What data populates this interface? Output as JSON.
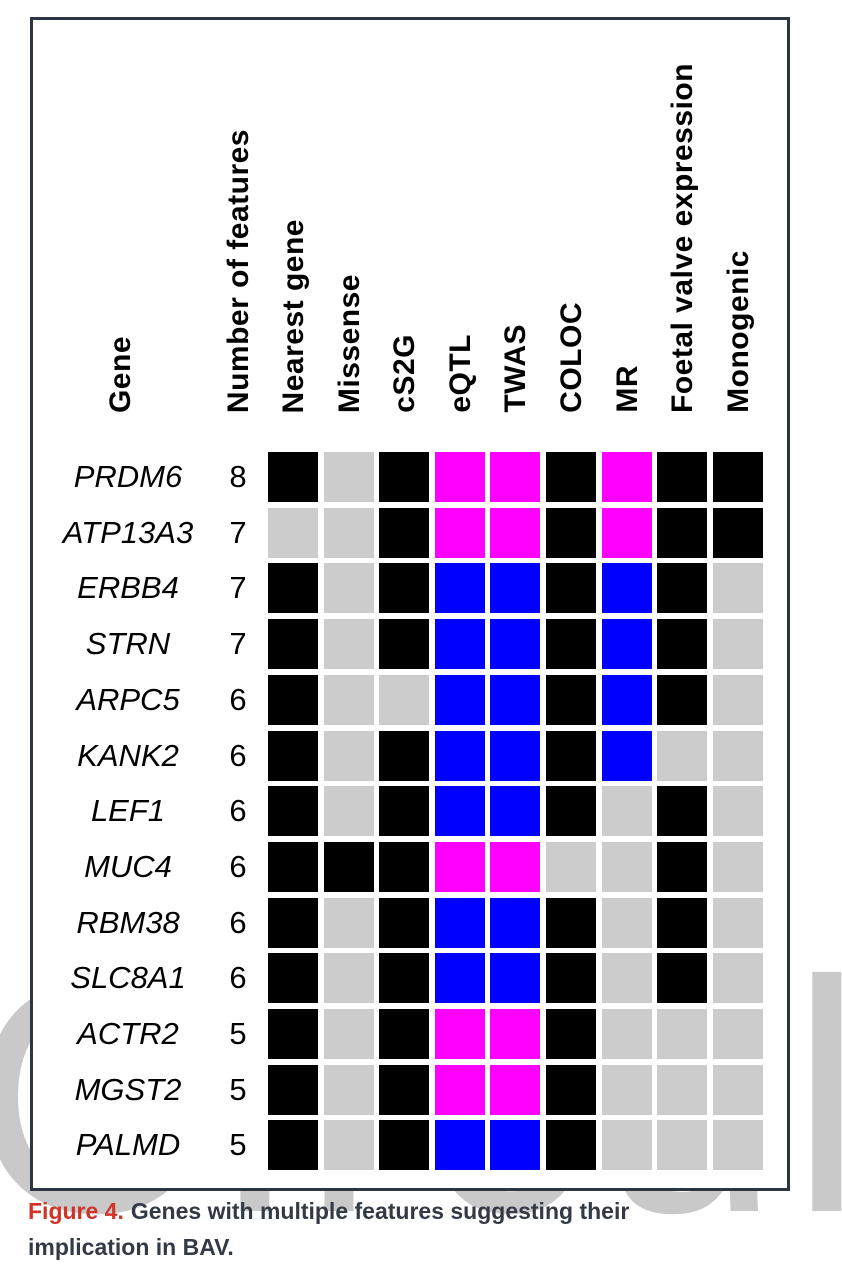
{
  "figure": {
    "caption_label": "Figure 4.",
    "caption_line1": "Genes with multiple features suggesting their",
    "caption_line2": "implication in BAV.",
    "watermark_text": "Circul"
  },
  "colors": {
    "black": "#000000",
    "gray": "#cccccc",
    "magenta": "#ff00ff",
    "blue": "#0000ff",
    "panel_border": "#2c3540",
    "caption_red": "#d13327",
    "caption_dark": "#333a46",
    "watermark_gray": "#c9c9c9"
  },
  "chart_data": {
    "type": "heatmap",
    "title": "Genes with multiple features suggesting their implication in BAV",
    "row_header": "Gene",
    "count_header": "Number of features",
    "feature_columns": [
      "Nearest gene",
      "Missense",
      "cS2G",
      "eQTL",
      "TWAS",
      "COLOC",
      "MR",
      "Foetal valve expression",
      "Monogenic"
    ],
    "cell_palette": [
      "black",
      "gray",
      "magenta",
      "blue"
    ],
    "rows": [
      {
        "gene": "PRDM6",
        "count": 8,
        "cells": [
          "black",
          "gray",
          "black",
          "magenta",
          "magenta",
          "black",
          "magenta",
          "black",
          "black"
        ]
      },
      {
        "gene": "ATP13A3",
        "count": 7,
        "cells": [
          "gray",
          "gray",
          "black",
          "magenta",
          "magenta",
          "black",
          "magenta",
          "black",
          "black"
        ]
      },
      {
        "gene": "ERBB4",
        "count": 7,
        "cells": [
          "black",
          "gray",
          "black",
          "blue",
          "blue",
          "black",
          "blue",
          "black",
          "gray"
        ]
      },
      {
        "gene": "STRN",
        "count": 7,
        "cells": [
          "black",
          "gray",
          "black",
          "blue",
          "blue",
          "black",
          "blue",
          "black",
          "gray"
        ]
      },
      {
        "gene": "ARPC5",
        "count": 6,
        "cells": [
          "black",
          "gray",
          "gray",
          "blue",
          "blue",
          "black",
          "blue",
          "black",
          "gray"
        ]
      },
      {
        "gene": "KANK2",
        "count": 6,
        "cells": [
          "black",
          "gray",
          "black",
          "blue",
          "blue",
          "black",
          "blue",
          "gray",
          "gray"
        ]
      },
      {
        "gene": "LEF1",
        "count": 6,
        "cells": [
          "black",
          "gray",
          "black",
          "blue",
          "blue",
          "black",
          "gray",
          "black",
          "gray"
        ]
      },
      {
        "gene": "MUC4",
        "count": 6,
        "cells": [
          "black",
          "black",
          "black",
          "magenta",
          "magenta",
          "gray",
          "gray",
          "black",
          "gray"
        ]
      },
      {
        "gene": "RBM38",
        "count": 6,
        "cells": [
          "black",
          "gray",
          "black",
          "blue",
          "blue",
          "black",
          "gray",
          "black",
          "gray"
        ]
      },
      {
        "gene": "SLC8A1",
        "count": 6,
        "cells": [
          "black",
          "gray",
          "black",
          "blue",
          "blue",
          "black",
          "gray",
          "black",
          "gray"
        ]
      },
      {
        "gene": "ACTR2",
        "count": 5,
        "cells": [
          "black",
          "gray",
          "black",
          "magenta",
          "magenta",
          "black",
          "gray",
          "gray",
          "gray"
        ]
      },
      {
        "gene": "MGST2",
        "count": 5,
        "cells": [
          "black",
          "gray",
          "black",
          "magenta",
          "magenta",
          "black",
          "gray",
          "gray",
          "gray"
        ]
      },
      {
        "gene": "PALMD",
        "count": 5,
        "cells": [
          "black",
          "gray",
          "black",
          "blue",
          "blue",
          "black",
          "gray",
          "gray",
          "gray"
        ]
      }
    ]
  }
}
